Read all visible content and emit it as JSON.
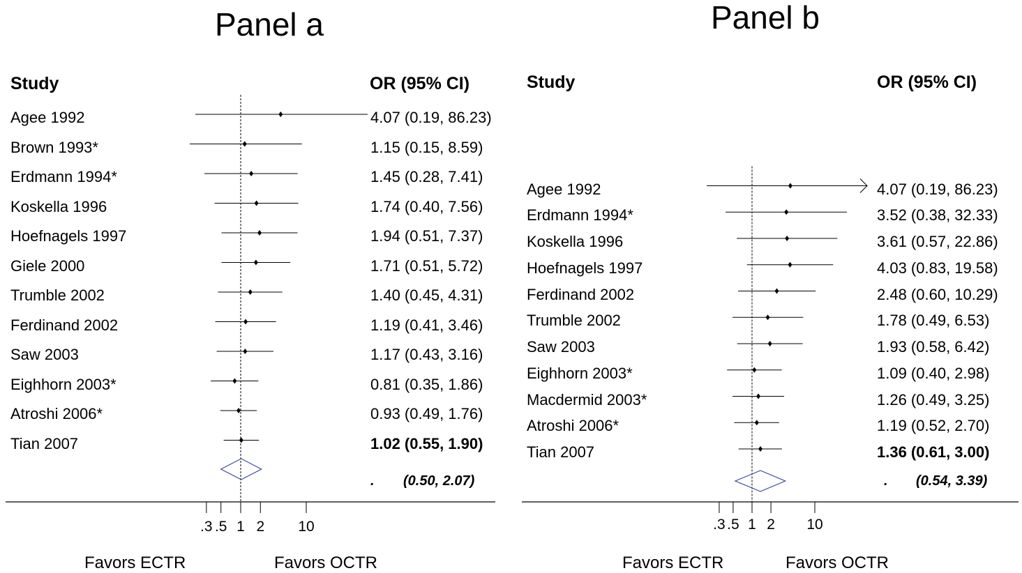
{
  "chart_data": [
    {
      "type": "forest",
      "panel_title": "Panel a",
      "study_header": "Study",
      "or_header": "OR (95% CI)",
      "x_scale": "log",
      "xlim": [
        0.3,
        10
      ],
      "reference_line": 1,
      "x_ticks": [
        {
          "value": 0.3,
          "label": ".3"
        },
        {
          "value": 0.5,
          "label": ".5"
        },
        {
          "value": 1,
          "label": "1"
        },
        {
          "value": 2,
          "label": "2"
        },
        {
          "value": 10,
          "label": "10"
        }
      ],
      "studies": [
        {
          "name": "Agee 1992",
          "or": 4.07,
          "ci": [
            0.19,
            86.23
          ],
          "or_text": "4.07 (0.19, 86.23)"
        },
        {
          "name": "Brown 1993*",
          "or": 1.15,
          "ci": [
            0.15,
            8.59
          ],
          "or_text": "1.15 (0.15, 8.59)"
        },
        {
          "name": "Erdmann 1994*",
          "or": 1.45,
          "ci": [
            0.28,
            7.41
          ],
          "or_text": "1.45 (0.28, 7.41)"
        },
        {
          "name": "Koskella 1996",
          "or": 1.74,
          "ci": [
            0.4,
            7.56
          ],
          "or_text": "1.74 (0.40, 7.56)"
        },
        {
          "name": "Hoefnagels 1997",
          "or": 1.94,
          "ci": [
            0.51,
            7.37
          ],
          "or_text": "1.94 (0.51, 7.37)"
        },
        {
          "name": "Giele 2000",
          "or": 1.71,
          "ci": [
            0.51,
            5.72
          ],
          "or_text": "1.71 (0.51, 5.72)"
        },
        {
          "name": "Trumble 2002",
          "or": 1.4,
          "ci": [
            0.45,
            4.31
          ],
          "or_text": "1.40 (0.45, 4.31)"
        },
        {
          "name": "Ferdinand 2002",
          "or": 1.19,
          "ci": [
            0.41,
            3.46
          ],
          "or_text": "1.19 (0.41, 3.46)"
        },
        {
          "name": "Saw 2003",
          "or": 1.17,
          "ci": [
            0.43,
            3.16
          ],
          "or_text": "1.17 (0.43, 3.16)"
        },
        {
          "name": "Eighhorn 2003*",
          "or": 0.81,
          "ci": [
            0.35,
            1.86
          ],
          "or_text": "0.81 (0.35, 1.86)"
        },
        {
          "name": "Atroshi 2006*",
          "or": 0.93,
          "ci": [
            0.49,
            1.76
          ],
          "or_text": "0.93 (0.49, 1.76)"
        },
        {
          "name": "Tian 2007",
          "or": 1.02,
          "ci": [
            0.55,
            1.9
          ],
          "or_text": "1.02 (0.55, 1.90)",
          "bold": true
        }
      ],
      "summary": {
        "or": 1.02,
        "ci": [
          0.5,
          2.07
        ],
        "dot": ".",
        "ci_text": "(0.50, 2.07)"
      },
      "favor_left": "Favors ECTR",
      "favor_right": "Favors OCTR"
    },
    {
      "type": "forest",
      "panel_title": "Panel b",
      "study_header": "Study",
      "or_header": "OR (95% CI)",
      "x_scale": "log",
      "xlim": [
        0.3,
        10
      ],
      "reference_line": 1,
      "x_ticks": [
        {
          "value": 0.3,
          "label": ".3"
        },
        {
          "value": 0.5,
          "label": ".5"
        },
        {
          "value": 1,
          "label": "1"
        },
        {
          "value": 2,
          "label": "2"
        },
        {
          "value": 10,
          "label": "10"
        }
      ],
      "studies": [
        {
          "name": "Agee 1992",
          "or": 4.07,
          "ci": [
            0.19,
            86.23
          ],
          "or_text": "4.07 (0.19, 86.23)"
        },
        {
          "name": "Erdmann 1994*",
          "or": 3.52,
          "ci": [
            0.38,
            32.33
          ],
          "or_text": "3.52 (0.38, 32.33)"
        },
        {
          "name": "Koskella 1996",
          "or": 3.61,
          "ci": [
            0.57,
            22.86
          ],
          "or_text": "3.61 (0.57, 22.86)"
        },
        {
          "name": "Hoefnagels 1997",
          "or": 4.03,
          "ci": [
            0.83,
            19.58
          ],
          "or_text": "4.03 (0.83, 19.58)"
        },
        {
          "name": "Ferdinand 2002",
          "or": 2.48,
          "ci": [
            0.6,
            10.29
          ],
          "or_text": "2.48 (0.60, 10.29)"
        },
        {
          "name": "Trumble 2002",
          "or": 1.78,
          "ci": [
            0.49,
            6.53
          ],
          "or_text": "1.78 (0.49, 6.53)"
        },
        {
          "name": "Saw 2003",
          "or": 1.93,
          "ci": [
            0.58,
            6.42
          ],
          "or_text": "1.93 (0.58, 6.42)"
        },
        {
          "name": "Eighhorn 2003*",
          "or": 1.09,
          "ci": [
            0.4,
            2.98
          ],
          "or_text": "1.09 (0.40, 2.98)"
        },
        {
          "name": "Macdermid 2003*",
          "or": 1.26,
          "ci": [
            0.49,
            3.25
          ],
          "or_text": "1.26 (0.49, 3.25)"
        },
        {
          "name": "Atroshi 2006*",
          "or": 1.19,
          "ci": [
            0.52,
            2.7
          ],
          "or_text": "1.19 (0.52, 2.70)"
        },
        {
          "name": "Tian 2007",
          "or": 1.36,
          "ci": [
            0.61,
            3.0
          ],
          "or_text": "1.36 (0.61, 3.00)",
          "bold": true
        }
      ],
      "summary": {
        "or": 1.36,
        "ci": [
          0.54,
          3.39
        ],
        "dot": ".",
        "ci_text": "(0.54, 3.39)"
      },
      "favor_left": "Favors ECTR",
      "favor_right": "Favors OCTR"
    }
  ],
  "colors": {
    "ink": "#000000",
    "diamond": "#3a4aa0"
  }
}
